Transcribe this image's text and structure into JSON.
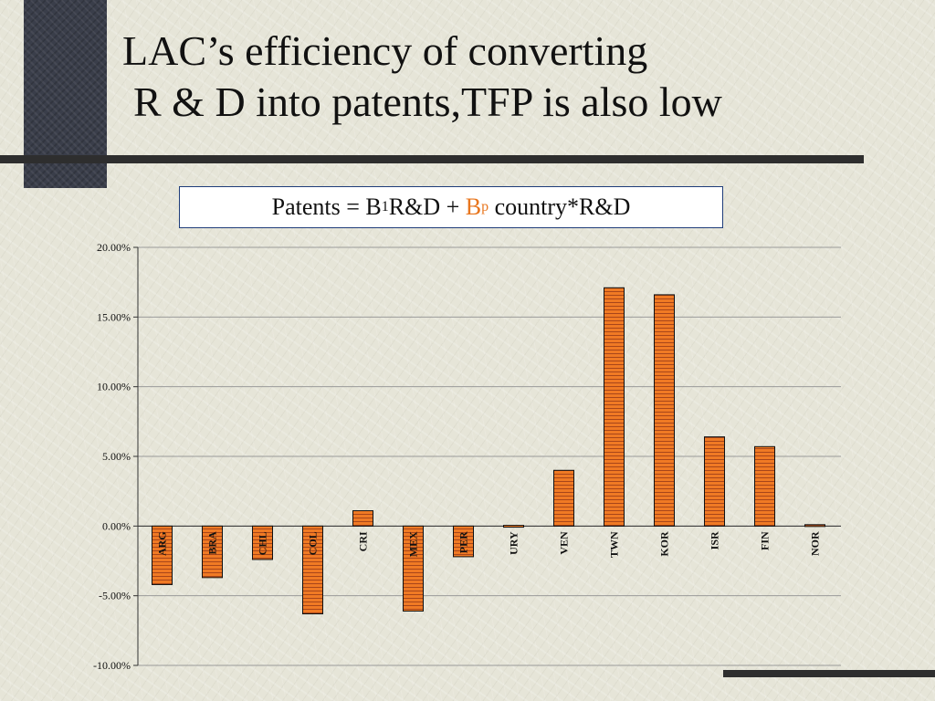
{
  "slide": {
    "title_line1": "LAC’s efficiency of converting",
    "title_line2": "R & D into patents,TFP is also low"
  },
  "formula": {
    "part1": "Patents = B",
    "sub1": "1",
    "part2": "R&D + ",
    "accent_b": "B",
    "accent_sub": "p",
    "part3": " country*R&D",
    "accent_color": "#e8761e"
  },
  "chart_data": {
    "type": "bar",
    "categories": [
      "ARG",
      "BRA",
      "CHL",
      "COL",
      "CRI",
      "MEX",
      "PER",
      "URY",
      "VEN",
      "TWN",
      "KOR",
      "ISR",
      "FIN",
      "NOR"
    ],
    "values": [
      -4.2,
      -3.7,
      -2.4,
      -6.3,
      1.1,
      -6.1,
      -2.2,
      0.05,
      4.0,
      17.1,
      16.6,
      6.4,
      5.7,
      0.1
    ],
    "ylim": [
      -10,
      20
    ],
    "yticks": [
      20,
      15,
      10,
      5,
      0,
      -5,
      -10
    ],
    "ytick_labels": [
      "20.00%",
      "15.00%",
      "10.00%",
      "5.00%",
      "0.00%",
      "-5.00%",
      "-10.00%"
    ],
    "grid": true,
    "bar_color": "#f07a24",
    "title": "",
    "xlabel": "",
    "ylabel": ""
  }
}
